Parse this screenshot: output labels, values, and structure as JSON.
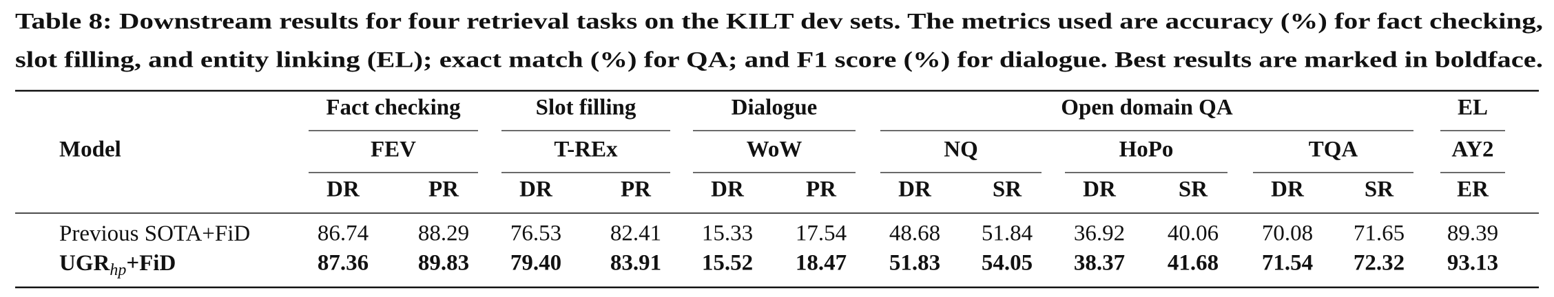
{
  "caption": [
    "Table 8: Downstream results for four retrieval tasks on the KILT dev sets. The metrics used are accuracy (%) for fact checking,",
    "slot filling, and entity linking (EL); exact match (%) for QA; and F1 score (%) for dialogue. Best results are marked in boldface."
  ],
  "table": {
    "model_header": "Model",
    "groups": [
      {
        "label": "Fact checking",
        "subgroups": [
          {
            "label": "FEV",
            "columns": [
              "DR",
              "PR"
            ]
          }
        ]
      },
      {
        "label": "Slot filling",
        "subgroups": [
          {
            "label": "T-REx",
            "columns": [
              "DR",
              "PR"
            ]
          }
        ]
      },
      {
        "label": "Dialogue",
        "subgroups": [
          {
            "label": "WoW",
            "columns": [
              "DR",
              "PR"
            ]
          }
        ]
      },
      {
        "label": "Open domain QA",
        "subgroups": [
          {
            "label": "NQ",
            "columns": [
              "DR",
              "SR"
            ]
          },
          {
            "label": "HoPo",
            "columns": [
              "DR",
              "SR"
            ]
          },
          {
            "label": "TQA",
            "columns": [
              "DR",
              "SR"
            ]
          }
        ]
      },
      {
        "label": "EL",
        "subgroups": [
          {
            "label": "AY2",
            "columns": [
              "ER"
            ]
          }
        ]
      }
    ],
    "rows": [
      {
        "model": [
          "Previous SOTA+FiD"
        ],
        "values": [
          "86.74",
          "88.29",
          "76.53",
          "82.41",
          "15.33",
          "17.54",
          "48.68",
          "51.84",
          "36.92",
          "40.06",
          "70.08",
          "71.65",
          "89.39"
        ]
      },
      {
        "model": [
          "UGR",
          "hp",
          "+FiD"
        ],
        "values": [
          "87.36",
          "89.83",
          "79.40",
          "83.91",
          "15.52",
          "18.47",
          "51.83",
          "54.05",
          "38.37",
          "41.68",
          "71.54",
          "72.32",
          "93.13"
        ]
      }
    ]
  }
}
